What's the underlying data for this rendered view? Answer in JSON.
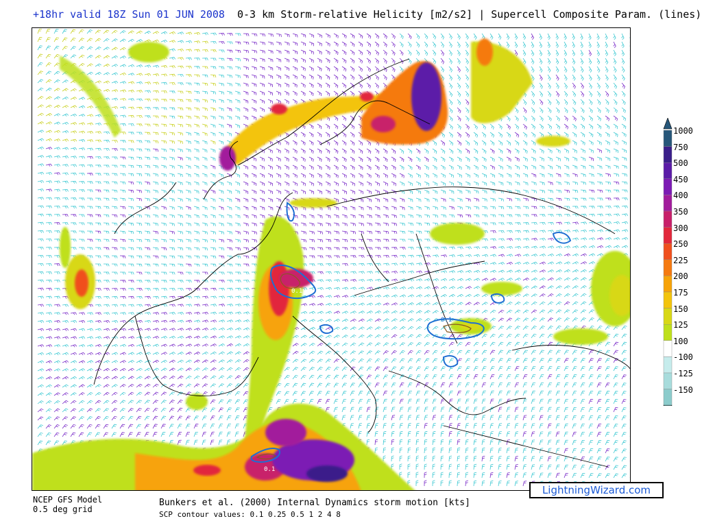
{
  "header": {
    "valid_time": "+18hr valid 18Z Sun 01 JUN 2008",
    "title": "0-3 km Storm-relative Helicity [m2/s2] | Supercell Composite Param. (lines)"
  },
  "legend": {
    "entries": [
      {
        "label": "1000",
        "color": "#27577a"
      },
      {
        "label": "750",
        "color": "#3a1f8a"
      },
      {
        "label": "500",
        "color": "#5b1ca8"
      },
      {
        "label": "450",
        "color": "#7c1bb4"
      },
      {
        "label": "400",
        "color": "#a21c9c"
      },
      {
        "label": "350",
        "color": "#c8206a"
      },
      {
        "label": "300",
        "color": "#e2283c"
      },
      {
        "label": "250",
        "color": "#f0501e"
      },
      {
        "label": "225",
        "color": "#f57a10"
      },
      {
        "label": "200",
        "color": "#f7a308"
      },
      {
        "label": "175",
        "color": "#f3c40c"
      },
      {
        "label": "150",
        "color": "#d8d816"
      },
      {
        "label": "125",
        "color": "#bfe01c"
      },
      {
        "label": "100",
        "color": "#ffffff"
      },
      {
        "label": "-100",
        "color": "#c6ecec"
      },
      {
        "label": "-125",
        "color": "#a8dcdc"
      },
      {
        "label": "-150",
        "color": "#8ccccc"
      }
    ]
  },
  "contour_labels": [
    "0.1",
    "0.1",
    "0.1"
  ],
  "footer": {
    "model": "NCEP GFS Model",
    "grid": "0.5 deg grid",
    "motion": "Bunkers et al. (2000) Internal Dynamics storm motion [kts]",
    "scp_values": "SCP contour values: 0.1 0.25 0.5 1 2 4 8",
    "brand": "LightningWizard.com"
  },
  "colors": {
    "header_blue": "#1a33cc",
    "brand_blue": "#1a5ad6",
    "barb_cyan": "#3cc8d2",
    "barb_purple": "#7a2cc8",
    "barb_yellow": "#c8d020",
    "coast": "#000000",
    "scp_contour": "#1e6ed2"
  }
}
